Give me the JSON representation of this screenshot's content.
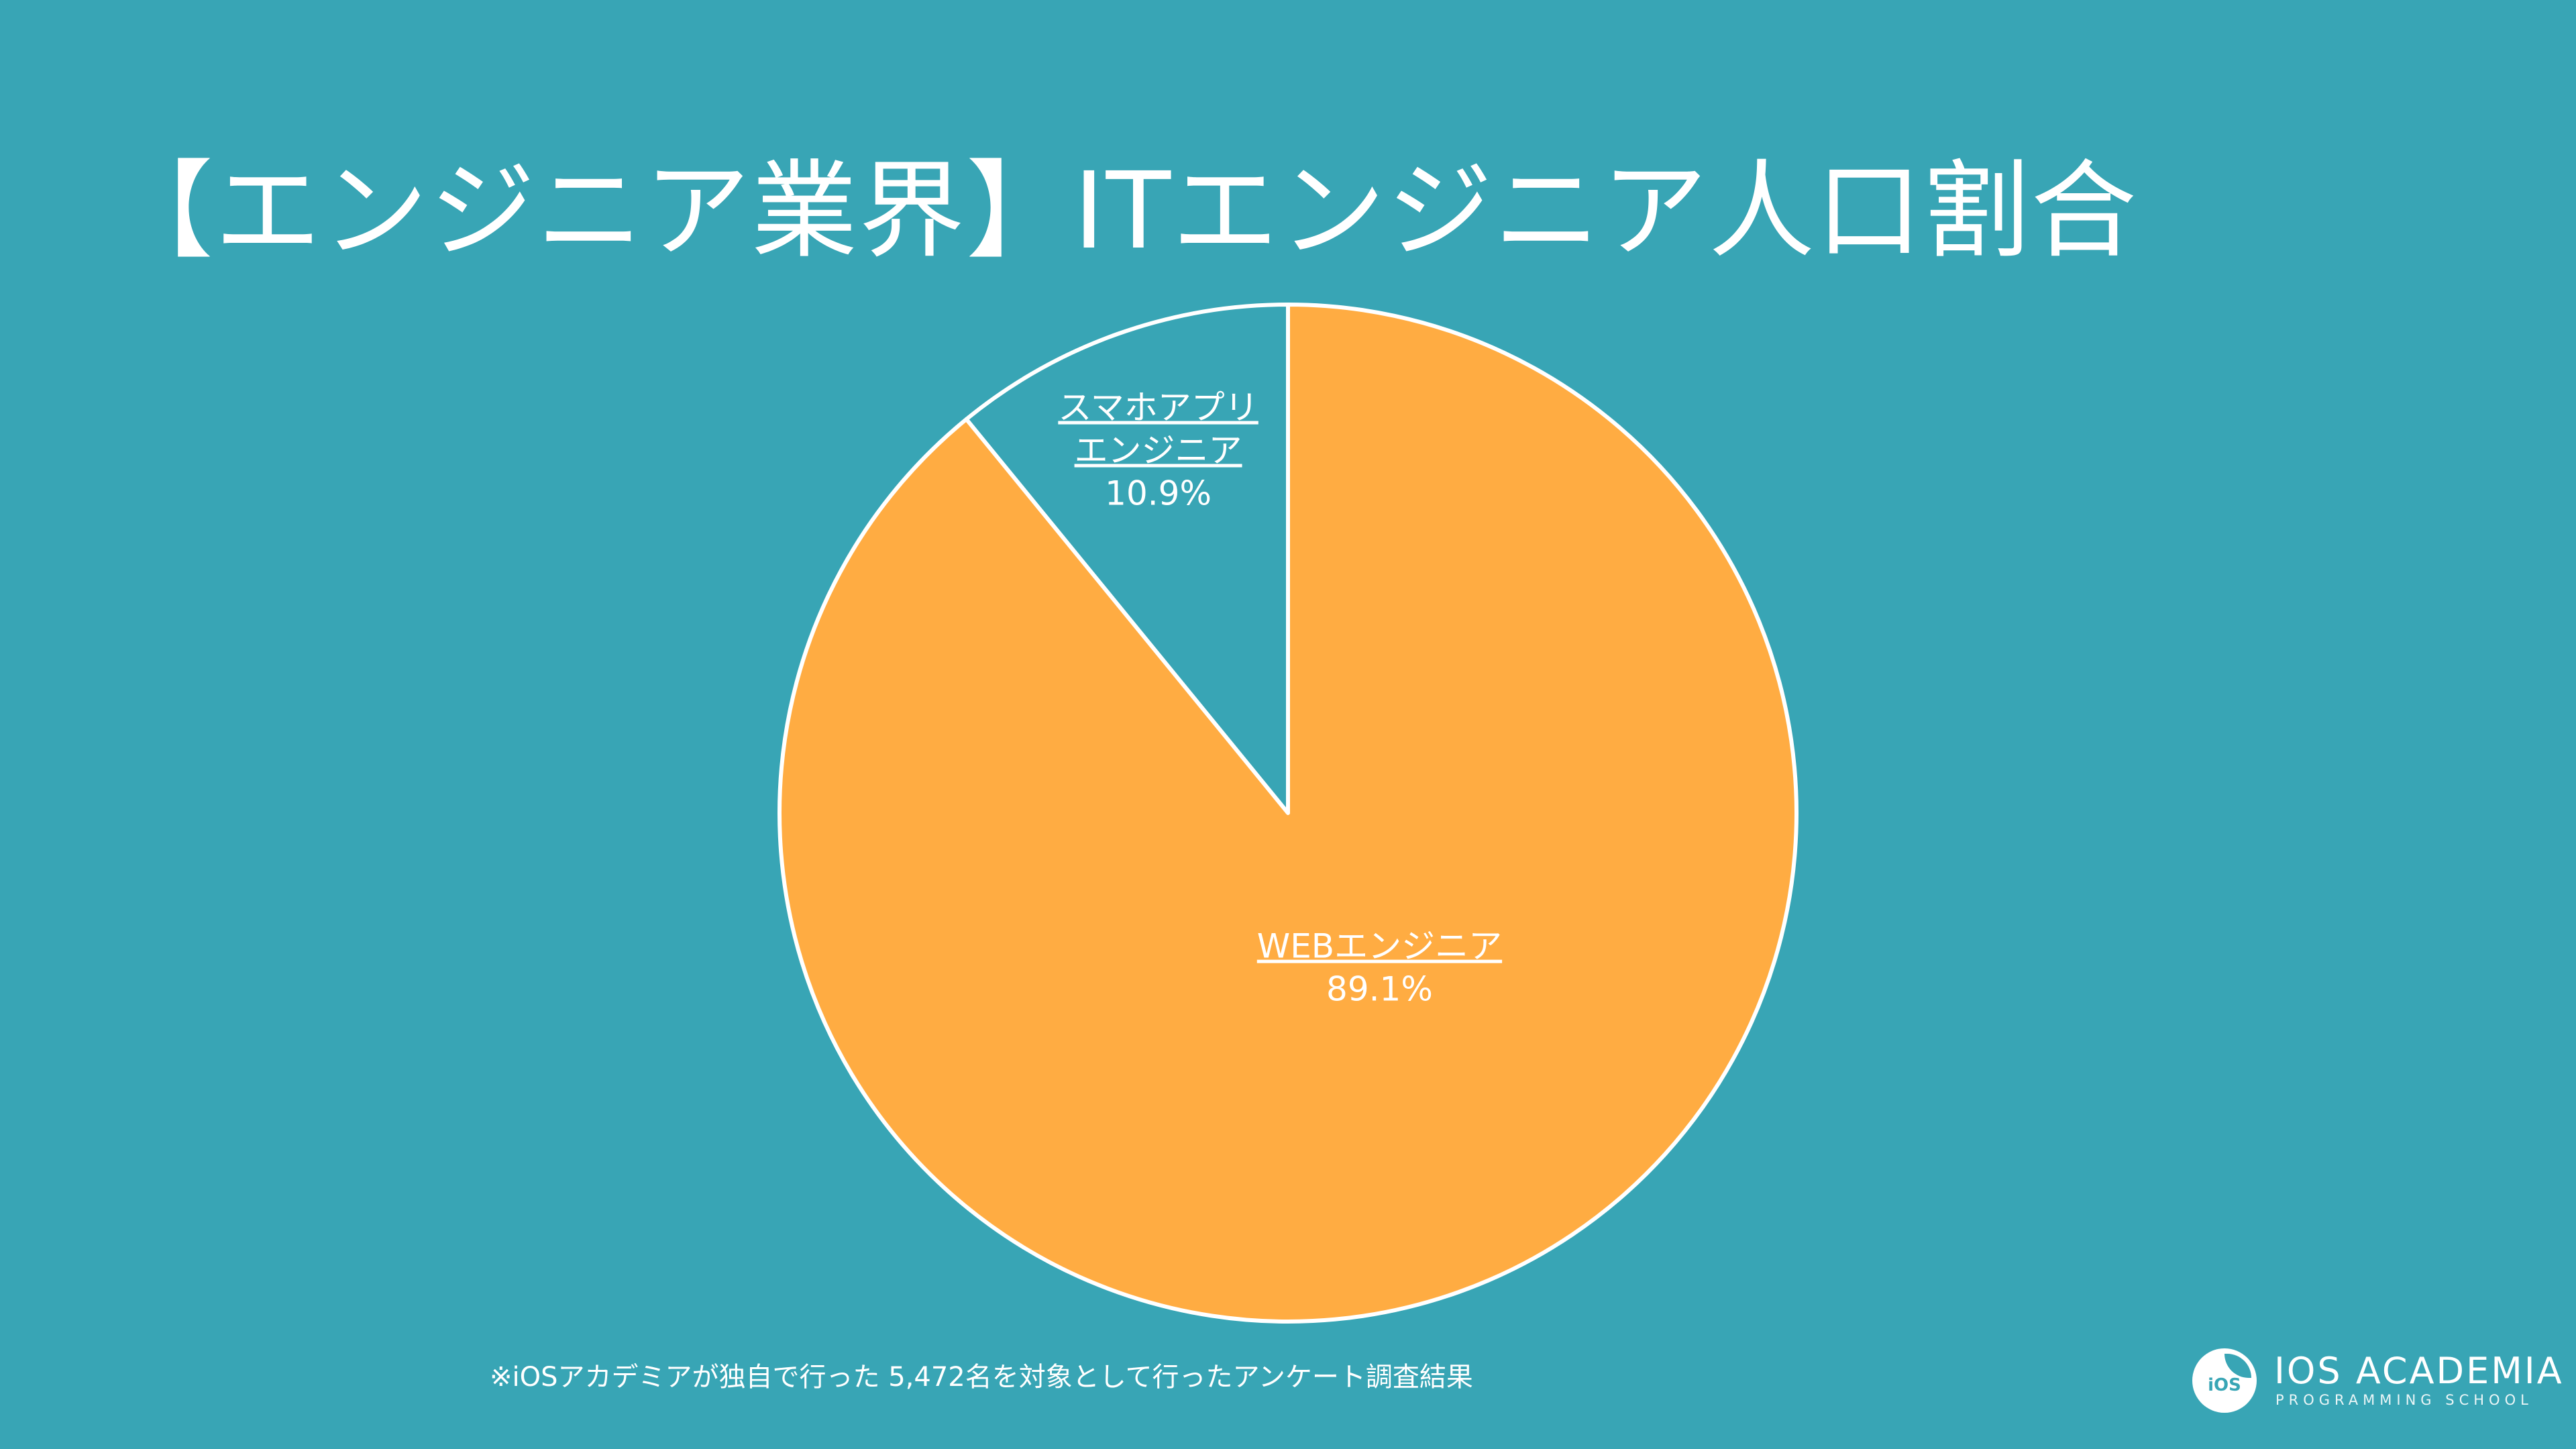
{
  "header": {
    "title": "【エンジニア業界】ITエンジニア人口割合"
  },
  "chart_data": {
    "type": "pie",
    "title": "【エンジニア業界】ITエンジニア人口割合",
    "slices": [
      {
        "label": "スマホアプリ\nエンジニア",
        "label_lines": [
          "スマホアプリ",
          "エンジニア"
        ],
        "value": 10.9,
        "value_text": "10.9%",
        "color": "#38a5b5"
      },
      {
        "label": "WEBエンジニア",
        "label_lines": [
          "WEBエンジニア"
        ],
        "value": 89.1,
        "value_text": "89.1%",
        "color": "#ffac42"
      }
    ],
    "start_angle": "12 o'clock",
    "direction": "counterclockwise",
    "slice_border_color": "#ffffff"
  },
  "footnote": {
    "text": "※iOSアカデミアが独自で行った 5,472名を対象として行ったアンケート調査結果"
  },
  "logo": {
    "badge": "iOS",
    "name": "IOS ACADEMIA",
    "tagline": "PROGRAMMING SCHOOL"
  },
  "colors": {
    "background": "#38a5b5",
    "accent": "#ffac42",
    "text": "#ffffff"
  }
}
